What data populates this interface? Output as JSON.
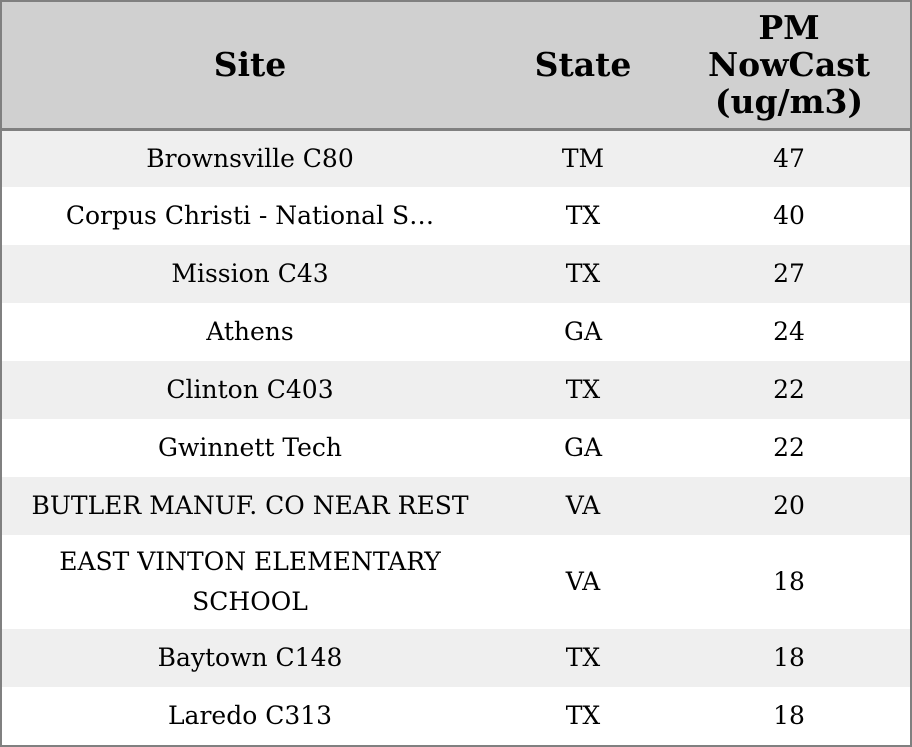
{
  "chart_data": {
    "type": "table",
    "columns": [
      "Site",
      "State",
      "PM NowCast (ug/m3)"
    ],
    "header_lines": {
      "site": "Site",
      "state": "State",
      "pm": [
        "PM",
        "NowCast",
        "(ug/m3)"
      ]
    },
    "rows": [
      {
        "site": "Brownsville C80",
        "state": "TM",
        "pm": "47"
      },
      {
        "site": "Corpus Christi - National S…",
        "state": "TX",
        "pm": "40"
      },
      {
        "site": "Mission C43",
        "state": "TX",
        "pm": "27"
      },
      {
        "site": "Athens",
        "state": "GA",
        "pm": "24"
      },
      {
        "site": "Clinton C403",
        "state": "TX",
        "pm": "22"
      },
      {
        "site": "Gwinnett Tech",
        "state": "GA",
        "pm": "22"
      },
      {
        "site": "BUTLER MANUF. CO NEAR REST",
        "state": "VA",
        "pm": "20"
      },
      {
        "site": "EAST VINTON ELEMENTARY SCHOOL",
        "state": "VA",
        "pm": "18"
      },
      {
        "site": "Baytown C148",
        "state": "TX",
        "pm": "18"
      },
      {
        "site": "Laredo C313",
        "state": "TX",
        "pm": "18"
      }
    ]
  },
  "colors": {
    "header_bg": "#d0d0d0",
    "stripe_bg": "#efefef",
    "row_bg": "#ffffff",
    "border": "#808080"
  }
}
